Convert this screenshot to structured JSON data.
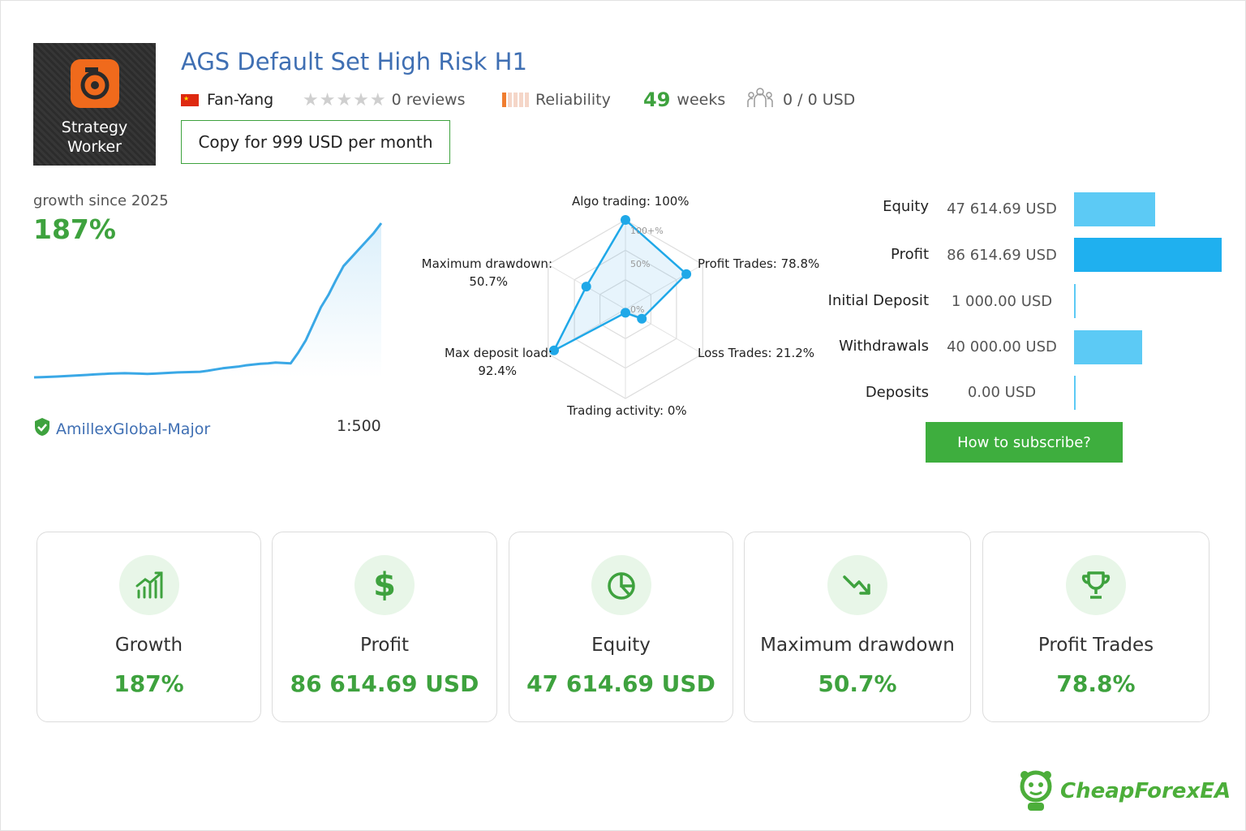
{
  "header": {
    "logo_line1": "Strategy",
    "logo_line2": "Worker",
    "title": "AGS Default Set High Risk H1",
    "author": "Fan-Yang",
    "reviews": "0 reviews",
    "rating_stars": 0,
    "reliability_label": "Reliability",
    "weeks_value": "49",
    "weeks_label": "weeks",
    "subscribers": "0 / 0 USD",
    "copy_button": "Copy for 999 USD per month"
  },
  "growth": {
    "label": "growth since 2025",
    "value": "187%",
    "broker": "AmillexGlobal-Major",
    "leverage": "1:500",
    "chart_data": {
      "type": "area",
      "series": [
        {
          "values": [
            0,
            0.3,
            0.6,
            1,
            1.5,
            2,
            2.5,
            3,
            3.5,
            4,
            4.5,
            4.8,
            5,
            4.8,
            4.5,
            4.2,
            4.5,
            5,
            5.5,
            6,
            6.3,
            6.5,
            6.8,
            8,
            9.5,
            11,
            12,
            13,
            14.5,
            15.5,
            16.5,
            17,
            18,
            17.5,
            17,
            30,
            45,
            65,
            85,
            100,
            118,
            135,
            145,
            155,
            165,
            175,
            187
          ]
        }
      ]
    }
  },
  "radar": {
    "chart_data": {
      "type": "radar",
      "axes": [
        "Algo trading",
        "Profit Trades",
        "Loss Trades",
        "Trading activity",
        "Max deposit load",
        "Maximum drawdown"
      ],
      "values": [
        100,
        78.8,
        21.2,
        0,
        92.4,
        50.7
      ],
      "rings": [
        "100+%",
        "50%",
        "0%"
      ]
    },
    "labels": {
      "algo": "Algo trading: 100%",
      "profit": "Profit Trades: 78.8%",
      "loss": "Loss Trades: 21.2%",
      "activity": "Trading activity: 0%",
      "load_1": "Max deposit load:",
      "load_2": "92.4%",
      "dd_1": "Maximum drawdown:",
      "dd_2": "50.7%"
    }
  },
  "balance": {
    "chart_data": {
      "type": "bar",
      "categories": [
        "Equity",
        "Profit",
        "Initial Deposit",
        "Withdrawals",
        "Deposits"
      ],
      "values": [
        47614.69,
        86614.69,
        1000.0,
        40000.0,
        0.0
      ]
    },
    "rows": [
      {
        "label": "Equity",
        "value": "47 614.69 USD"
      },
      {
        "label": "Profit",
        "value": "86 614.69 USD"
      },
      {
        "label": "Initial Deposit",
        "value": "1 000.00 USD"
      },
      {
        "label": "Withdrawals",
        "value": "40 000.00 USD"
      },
      {
        "label": "Deposits",
        "value": "0.00 USD"
      }
    ],
    "subscribe_button": "How to subscribe?"
  },
  "cards": [
    {
      "label": "Growth",
      "value": "187%",
      "icon": "growth-icon"
    },
    {
      "label": "Profit",
      "value": "86 614.69 USD",
      "icon": "dollar-icon"
    },
    {
      "label": "Equity",
      "value": "47 614.69 USD",
      "icon": "pie-icon"
    },
    {
      "label": "Maximum drawdown",
      "value": "50.7%",
      "icon": "trend-down-icon"
    },
    {
      "label": "Profit Trades",
      "value": "78.8%",
      "icon": "trophy-icon"
    }
  ],
  "watermark": "CheapForexEA",
  "colors": {
    "accent_green": "#3ea23e",
    "title_blue": "#3f6fb3",
    "chart_blue": "#3aa8e6",
    "bar_blue": "#5ccaf5"
  }
}
